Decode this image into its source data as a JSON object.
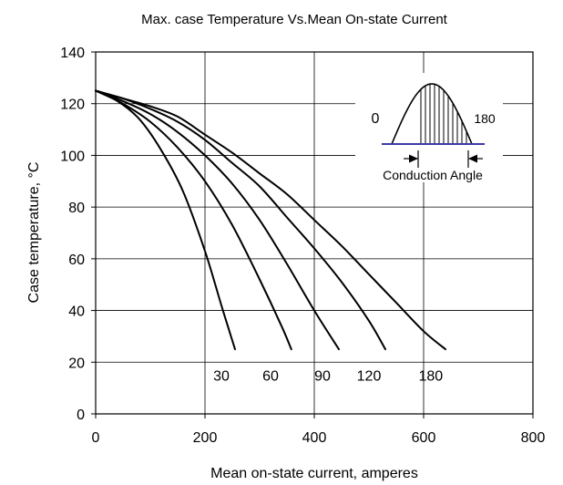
{
  "chart_data": {
    "type": "line",
    "title": "Max. case Temperature Vs.Mean  On-state Current",
    "xlabel": "Mean on-state  current, amperes",
    "ylabel": "Case temperature, °C",
    "xlim": [
      0,
      800
    ],
    "ylim": [
      0,
      140
    ],
    "x_ticks": [
      0,
      200,
      400,
      600,
      800
    ],
    "y_ticks": [
      0,
      20,
      40,
      60,
      80,
      100,
      120,
      140
    ],
    "grid": true,
    "series": [
      {
        "name": "30",
        "label_at": [
          230,
          15
        ],
        "points": [
          [
            0,
            125
          ],
          [
            40,
            121
          ],
          [
            80,
            114
          ],
          [
            120,
            102
          ],
          [
            160,
            86
          ],
          [
            200,
            63
          ],
          [
            230,
            42
          ],
          [
            255,
            25
          ]
        ]
      },
      {
        "name": "60",
        "label_at": [
          320,
          15
        ],
        "points": [
          [
            0,
            125
          ],
          [
            50,
            120
          ],
          [
            100,
            113
          ],
          [
            150,
            103
          ],
          [
            200,
            90
          ],
          [
            250,
            73
          ],
          [
            300,
            52
          ],
          [
            340,
            34
          ],
          [
            358,
            25
          ]
        ]
      },
      {
        "name": "90",
        "label_at": [
          415,
          15
        ],
        "points": [
          [
            0,
            125
          ],
          [
            50,
            121
          ],
          [
            100,
            116
          ],
          [
            150,
            109
          ],
          [
            200,
            100
          ],
          [
            250,
            89
          ],
          [
            300,
            75
          ],
          [
            350,
            58
          ],
          [
            400,
            40
          ],
          [
            445,
            25
          ]
        ]
      },
      {
        "name": "120",
        "label_at": [
          500,
          15
        ],
        "points": [
          [
            0,
            125
          ],
          [
            50,
            122
          ],
          [
            100,
            118
          ],
          [
            150,
            113
          ],
          [
            200,
            106
          ],
          [
            250,
            97
          ],
          [
            300,
            88
          ],
          [
            350,
            76
          ],
          [
            400,
            64
          ],
          [
            450,
            51
          ],
          [
            500,
            36
          ],
          [
            530,
            25
          ]
        ]
      },
      {
        "name": "180",
        "label_at": [
          613,
          15
        ],
        "points": [
          [
            0,
            125
          ],
          [
            50,
            122
          ],
          [
            100,
            119
          ],
          [
            150,
            115
          ],
          [
            200,
            108
          ],
          [
            250,
            101
          ],
          [
            300,
            93
          ],
          [
            350,
            85
          ],
          [
            400,
            75
          ],
          [
            450,
            65
          ],
          [
            500,
            54
          ],
          [
            550,
            43
          ],
          [
            600,
            32
          ],
          [
            640,
            25
          ]
        ]
      }
    ],
    "inset": {
      "label_0": "0",
      "label_180": "180",
      "caption": "Conduction Angle"
    }
  }
}
